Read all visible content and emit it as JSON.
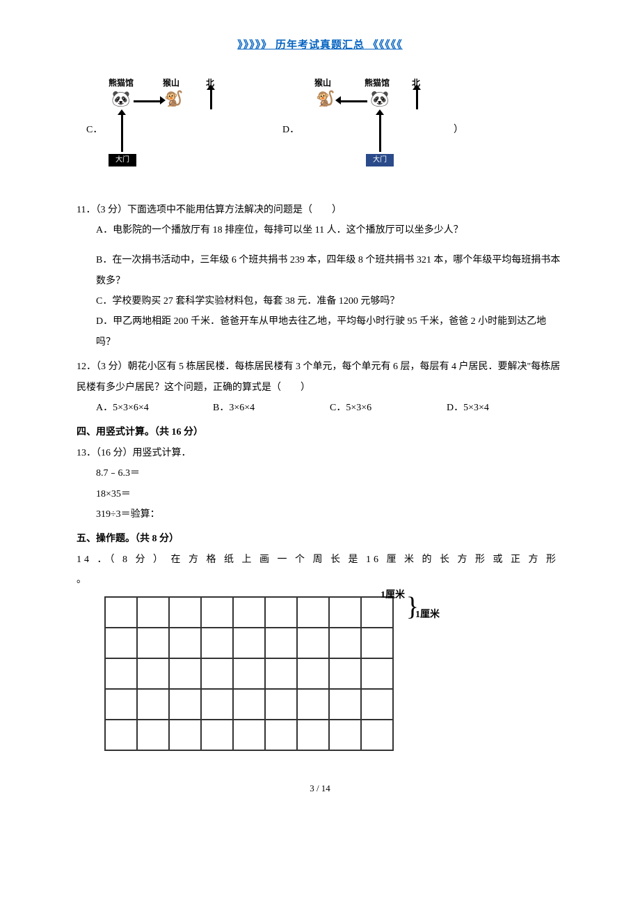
{
  "header": {
    "link_text": "》》》》》 历年考试真题汇总 《《《《《"
  },
  "diagrams": {
    "c_label": "C．",
    "d_label": "D．",
    "end_paren": "）",
    "c": {
      "top_left": "熊猫馆",
      "top_right": "猴山",
      "north": "北",
      "gate": "大门"
    },
    "d": {
      "top_left": "猴山",
      "top_right": "熊猫馆",
      "north": "北",
      "gate": "大门"
    }
  },
  "q11": {
    "stem": "11．（3 分）下面选项中不能用估算方法解决的问题是（　　）",
    "a": "A．电影院的一个播放厅有 18 排座位，每排可以坐 11 人．这个播放厅可以坐多少人？",
    "b": "B．在一次捐书活动中，三年级 6 个班共捐书 239 本，四年级 8 个班共捐书 321 本，哪个年级平均每班捐书本数多？",
    "c": "C．学校要购买 27 套科学实验材料包，每套 38 元．准备 1200 元够吗？",
    "d": "D．甲乙两地相距 200 千米．爸爸开车从甲地去往乙地，平均每小时行驶 95 千米，爸爸 2 小时能到达乙地吗？"
  },
  "q12": {
    "stem": "12．（3 分）朝花小区有 5 栋居民楼．每栋居民楼有 3 个单元，每个单元有 6 层，每层有 4 户居民．要解决\"每栋居民楼有多少户居民？这个问题，正确的算式是（　　）",
    "a": "A．5×3×6×4",
    "b": "B．3×6×4",
    "c": "C．5×3×6",
    "d": "D．5×3×4"
  },
  "section4": {
    "title": "四、用竖式计算。（共 16 分）"
  },
  "q13": {
    "stem": "13．（16 分）用竖式计算．",
    "p1": "8.7﹣6.3＝",
    "p2": "18×35＝",
    "p3": "319÷3＝验算："
  },
  "section5": {
    "title": "五、操作题。（共 8 分）"
  },
  "q14": {
    "stem": "14 ．（ 8 分 ） 在 方 格 纸 上 画 一 个 周 长 是 16 厘 米 的 长 方 形 或 正 方 形 。",
    "unit_top": "1厘米",
    "unit_side": "1厘米"
  },
  "footer": {
    "page": "3 / 14"
  },
  "grid": {
    "rows": 5,
    "cols": 9
  }
}
